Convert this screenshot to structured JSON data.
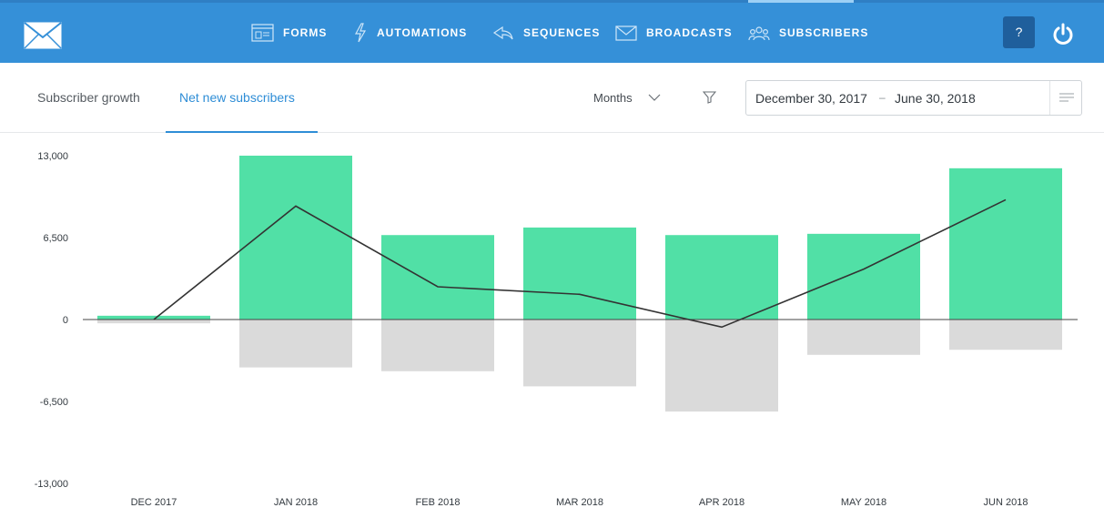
{
  "nav": {
    "items": [
      {
        "label": "FORMS",
        "icon": "forms-icon"
      },
      {
        "label": "AUTOMATIONS",
        "icon": "lightning-icon"
      },
      {
        "label": "SEQUENCES",
        "icon": "sequences-icon"
      },
      {
        "label": "BROADCASTS",
        "icon": "envelope-icon"
      },
      {
        "label": "SUBSCRIBERS",
        "icon": "people-icon"
      }
    ],
    "active": "SUBSCRIBERS",
    "help_label": "?",
    "colors": {
      "bar": "#3590d8",
      "help_bg": "#1f5f9c"
    }
  },
  "subheader": {
    "tabs": [
      {
        "label": "Subscriber growth"
      },
      {
        "label": "Net new subscribers"
      }
    ],
    "active_tab": "Net new subscribers",
    "period_select": "Months",
    "date_range": {
      "start": "December 30, 2017",
      "separator": "–",
      "end": "June 30, 2018"
    }
  },
  "chart_data": {
    "type": "bar",
    "categories": [
      "DEC 2017",
      "JAN 2018",
      "FEB 2018",
      "MAR 2018",
      "APR 2018",
      "MAY 2018",
      "JUN 2018"
    ],
    "series": [
      {
        "values": [
          300,
          13000,
          6700,
          7300,
          6700,
          6800,
          12000
        ],
        "color": "#51e0a6"
      },
      {
        "values": [
          -300,
          -3800,
          -4100,
          -5300,
          -7300,
          -2800,
          -2400
        ],
        "color": "#dadada"
      },
      {
        "type": "line",
        "values": [
          0,
          9000,
          2600,
          2000,
          -600,
          4000,
          9500
        ],
        "color": "#333333"
      }
    ],
    "yticks": [
      "13,000",
      "6,500",
      "0",
      "-6,500",
      "-13,000"
    ],
    "ylim": [
      -13000,
      13000
    ],
    "grid": false
  }
}
